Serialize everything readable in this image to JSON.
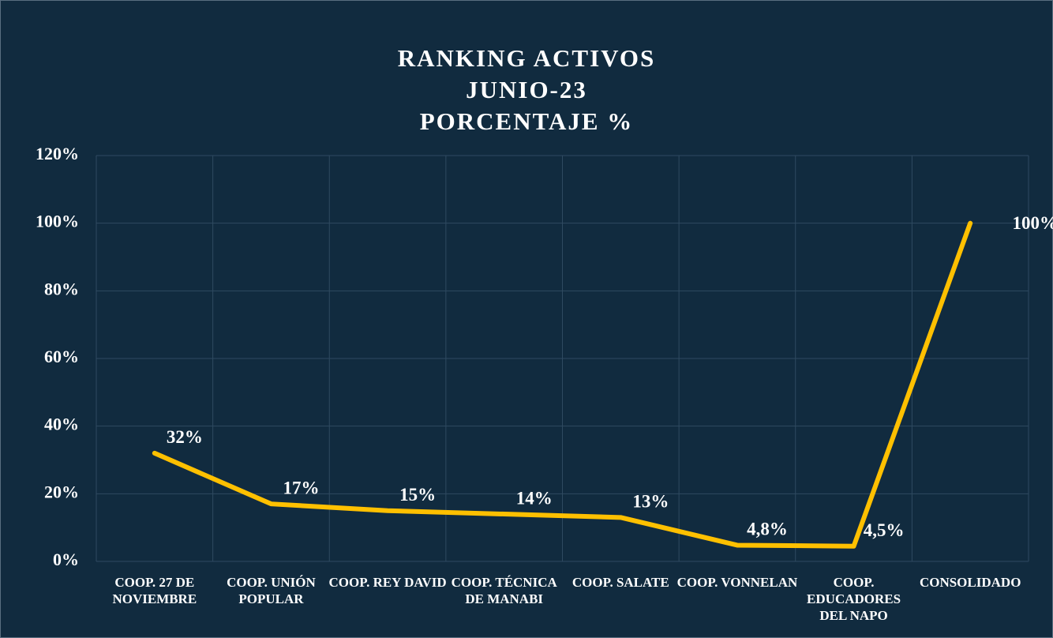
{
  "chart_data": {
    "type": "line",
    "title": [
      "RANKING ACTIVOS",
      "JUNIO-23",
      "PORCENTAJE %"
    ],
    "categories": [
      "COOP. 27 DE NOVIEMBRE",
      "COOP. UNIÓN POPULAR",
      "COOP. REY DAVID",
      "COOP. TÉCNICA DE MANABI",
      "COOP. SALATE",
      "COOP. VONNELAN",
      "COOP. EDUCADORES DEL NAPO",
      "CONSOLIDADO"
    ],
    "values": [
      32,
      17,
      15,
      14,
      13,
      4.8,
      4.5,
      100
    ],
    "value_labels": [
      "32%",
      "17%",
      "15%",
      "14%",
      "13%",
      "4,8%",
      "4,5%",
      "100%"
    ],
    "color": "#ffc000",
    "ylim": [
      0,
      120
    ],
    "yticks": [
      {
        "value": 0,
        "label": "0%"
      },
      {
        "value": 20,
        "label": "20%"
      },
      {
        "value": 40,
        "label": "40%"
      },
      {
        "value": 60,
        "label": "60%"
      },
      {
        "value": 80,
        "label": "80%"
      },
      {
        "value": 100,
        "label": "100%"
      },
      {
        "value": 120,
        "label": "120%"
      }
    ],
    "grid": true
  }
}
